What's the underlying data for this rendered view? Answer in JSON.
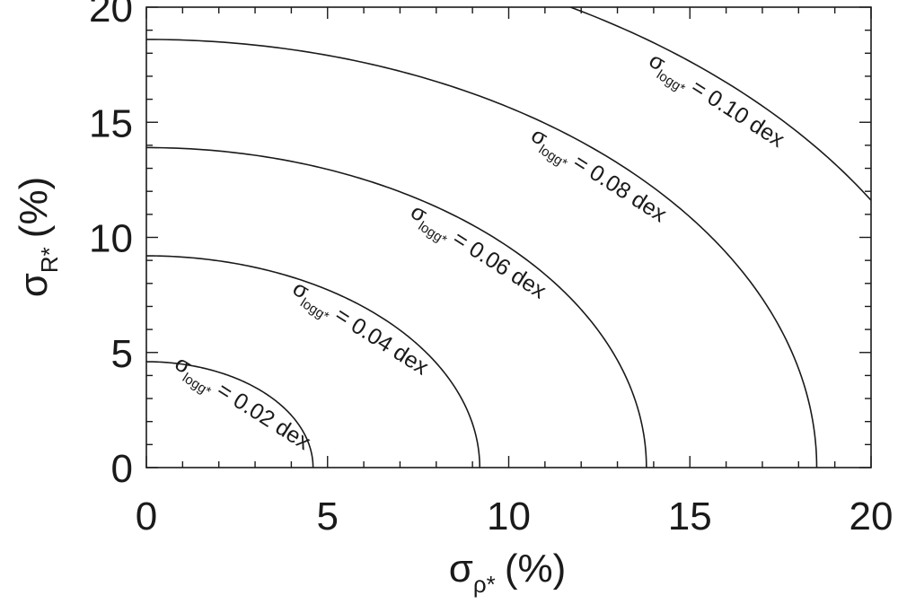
{
  "chart_data": {
    "type": "line",
    "x_axis": {
      "symbol": "σ",
      "subscript": "ρ*",
      "unit": "(%)",
      "range": [
        0,
        20
      ],
      "ticks": [
        "0",
        "5",
        "10",
        "15",
        "20"
      ]
    },
    "y_axis": {
      "symbol": "σ",
      "subscript": "R*",
      "unit": "(%)",
      "range": [
        0,
        20
      ],
      "ticks": [
        "0",
        "5",
        "10",
        "15",
        "20"
      ]
    },
    "contours": [
      {
        "symbol": "σ",
        "subscript": "logg*",
        "text": "= 0.02 dex",
        "radius_x": 4.6,
        "radius_y": 4.6
      },
      {
        "symbol": "σ",
        "subscript": "logg*",
        "text": "= 0.04 dex",
        "radius_x": 9.2,
        "radius_y": 9.2
      },
      {
        "symbol": "σ",
        "subscript": "logg*",
        "text": "= 0.06 dex",
        "radius_x": 13.8,
        "radius_y": 13.9
      },
      {
        "symbol": "σ",
        "subscript": "logg*",
        "text": "= 0.08 dex",
        "radius_x": 18.5,
        "radius_y": 18.6
      },
      {
        "symbol": "σ",
        "subscript": "logg*",
        "text": "= 0.10 dex",
        "radius_x": 23.1,
        "radius_y": 23.2
      }
    ]
  }
}
